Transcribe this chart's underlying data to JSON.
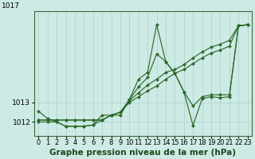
{
  "title": "Graphe pression niveau de la mer (hPa)",
  "bg_color": "#ceeae4",
  "grid_color": "#aad4cc",
  "line_color": "#2d6a2d",
  "marker_color": "#2d6a2d",
  "x_min": 0,
  "x_max": 23,
  "y_min": 1011.3,
  "y_max": 1017.7,
  "ytick_labels": [
    "1012",
    "1013"
  ],
  "ytick_values": [
    1012.0,
    1013.0
  ],
  "series": [
    {
      "x": [
        0,
        1,
        2,
        3,
        4,
        5,
        6,
        7,
        8,
        9,
        10,
        11,
        12,
        13,
        14,
        15,
        16,
        17,
        18,
        19,
        20,
        21,
        22,
        23
      ],
      "y": [
        1012.55,
        1012.18,
        1012.0,
        1011.78,
        1011.78,
        1011.78,
        1011.85,
        1012.35,
        1012.35,
        1012.35,
        1013.15,
        1014.2,
        1014.55,
        1017.0,
        1015.1,
        1014.5,
        1013.55,
        1011.82,
        1013.2,
        1013.3,
        1013.25,
        1013.3,
        1016.95,
        1017.0
      ]
    },
    {
      "x": [
        0,
        1,
        2,
        3,
        4,
        5,
        6,
        7,
        8,
        9,
        10,
        11,
        12,
        13,
        14,
        15,
        16,
        17,
        18,
        19,
        20,
        21,
        22,
        23
      ],
      "y": [
        1012.0,
        1012.0,
        1012.0,
        1011.78,
        1011.78,
        1011.78,
        1011.85,
        1012.1,
        1012.35,
        1012.5,
        1013.15,
        1013.8,
        1014.3,
        1015.5,
        1015.1,
        1014.5,
        1013.55,
        1012.82,
        1013.3,
        1013.4,
        1013.4,
        1013.4,
        1016.95,
        1017.0
      ]
    },
    {
      "x": [
        0,
        1,
        2,
        3,
        4,
        5,
        6,
        7,
        8,
        9,
        10,
        11,
        12,
        13,
        14,
        15,
        16,
        17,
        18,
        19,
        20,
        21,
        22,
        23
      ],
      "y": [
        1012.1,
        1012.1,
        1012.1,
        1012.1,
        1012.1,
        1012.1,
        1012.1,
        1012.1,
        1012.35,
        1012.5,
        1013.1,
        1013.5,
        1013.9,
        1014.2,
        1014.55,
        1014.7,
        1014.95,
        1015.3,
        1015.6,
        1015.85,
        1016.0,
        1016.2,
        1016.95,
        1017.0
      ]
    },
    {
      "x": [
        0,
        1,
        2,
        3,
        4,
        5,
        6,
        7,
        8,
        9,
        10,
        11,
        12,
        13,
        14,
        15,
        16,
        17,
        18,
        19,
        20,
        21,
        22,
        23
      ],
      "y": [
        1012.1,
        1012.1,
        1012.1,
        1012.1,
        1012.1,
        1012.1,
        1012.1,
        1012.1,
        1012.35,
        1012.5,
        1013.0,
        1013.3,
        1013.6,
        1013.85,
        1014.2,
        1014.5,
        1014.7,
        1015.0,
        1015.3,
        1015.55,
        1015.7,
        1015.9,
        1016.95,
        1017.0
      ]
    }
  ],
  "xlabel_fontsize": 6,
  "ylabel_fontsize": 6.5,
  "title_fontsize": 7.5
}
